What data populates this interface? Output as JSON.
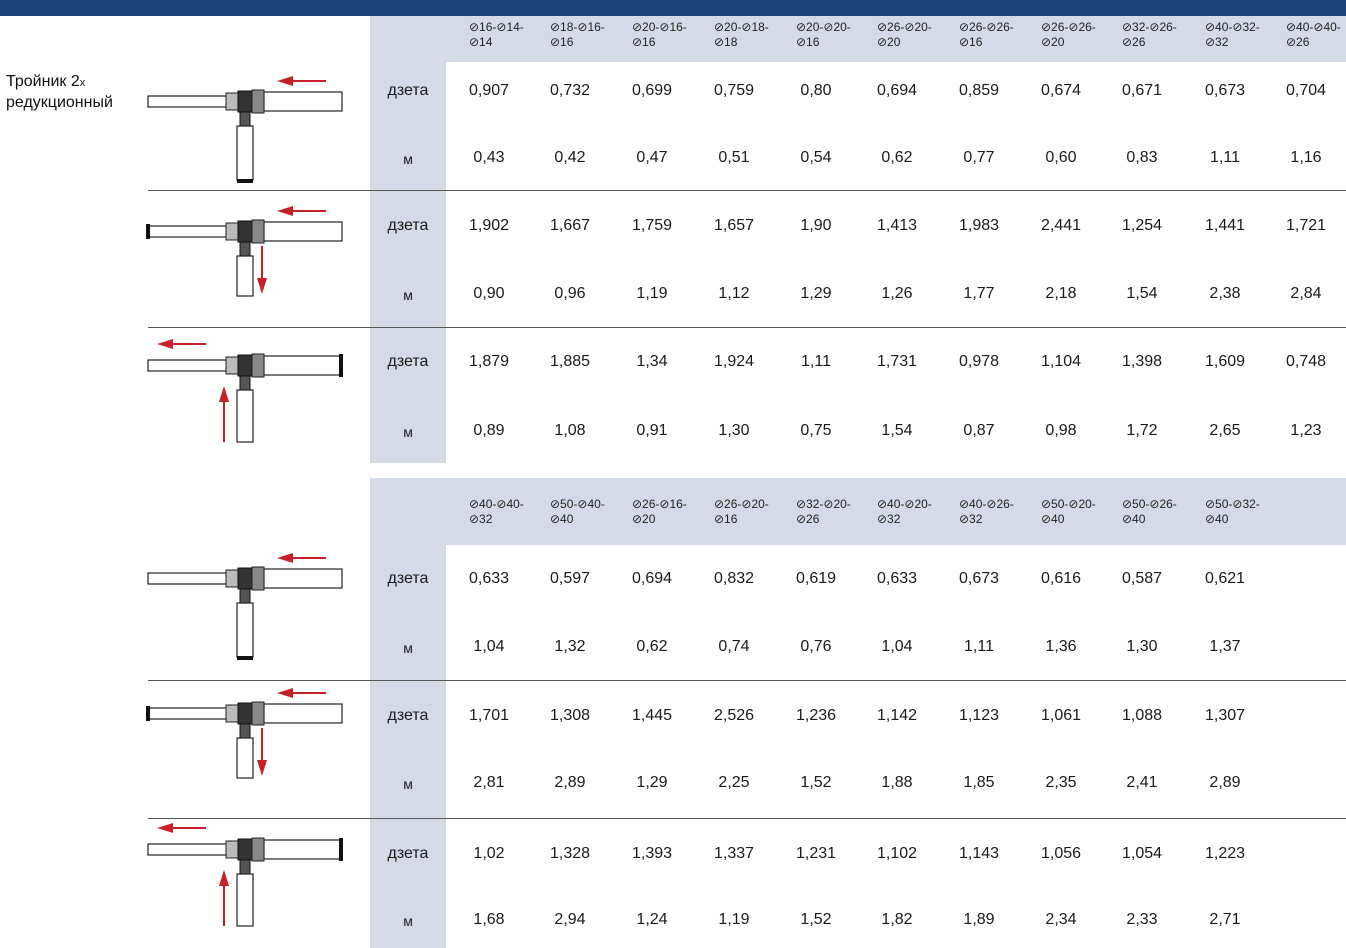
{
  "title": {
    "main": "Тройник 2",
    "suffix": "x",
    "line2": "редукционный"
  },
  "labels": {
    "zeta": "дзета",
    "m": "м"
  },
  "colors": {
    "header_bar": "#1c4378",
    "band": "#d5dae8",
    "arrow": "#c8202a"
  },
  "diagram_icons": [
    "tee-straight-flow-icon",
    "tee-split-flow-icon",
    "tee-merge-flow-icon"
  ],
  "table1": {
    "headers": [
      "⊘16-⊘14-\n⊘14",
      "⊘18-⊘16-\n⊘16",
      "⊘20-⊘16-\n⊘16",
      "⊘20-⊘18-\n⊘18",
      "⊘20-⊘20-\n⊘16",
      "⊘26-⊘20-\n⊘20",
      "⊘26-⊘26-\n⊘16",
      "⊘26-⊘26-\n⊘20",
      "⊘32-⊘26-\n⊘26",
      "⊘40-⊘32-\n⊘32",
      "⊘40-⊘40-\n⊘26"
    ],
    "rows": [
      {
        "zeta": [
          "0,907",
          "0,732",
          "0,699",
          "0,759",
          "0,80",
          "0,694",
          "0,859",
          "0,674",
          "0,671",
          "0,673",
          "0,704"
        ],
        "m": [
          "0,43",
          "0,42",
          "0,47",
          "0,51",
          "0,54",
          "0,62",
          "0,77",
          "0,60",
          "0,83",
          "1,11",
          "1,16"
        ]
      },
      {
        "zeta": [
          "1,902",
          "1,667",
          "1,759",
          "1,657",
          "1,90",
          "1,413",
          "1,983",
          "2,441",
          "1,254",
          "1,441",
          "1,721"
        ],
        "m": [
          "0,90",
          "0,96",
          "1,19",
          "1,12",
          "1,29",
          "1,26",
          "1,77",
          "2,18",
          "1,54",
          "2,38",
          "2,84"
        ]
      },
      {
        "zeta": [
          "1,879",
          "1,885",
          "1,34",
          "1,924",
          "1,11",
          "1,731",
          "0,978",
          "1,104",
          "1,398",
          "1,609",
          "0,748"
        ],
        "m": [
          "0,89",
          "1,08",
          "0,91",
          "1,30",
          "0,75",
          "1,54",
          "0,87",
          "0,98",
          "1,72",
          "2,65",
          "1,23"
        ]
      }
    ]
  },
  "table2": {
    "headers": [
      "⊘40-⊘40-\n⊘32",
      "⊘50-⊘40-\n⊘40",
      "⊘26-⊘16-\n⊘20",
      "⊘26-⊘20-\n⊘16",
      "⊘32-⊘20-\n⊘26",
      "⊘40-⊘20-\n⊘32",
      "⊘40-⊘26-\n⊘32",
      "⊘50-⊘20-\n⊘40",
      "⊘50-⊘26-\n⊘40",
      "⊘50-⊘32-\n⊘40"
    ],
    "rows": [
      {
        "zeta": [
          "0,633",
          "0,597",
          "0,694",
          "0,832",
          "0,619",
          "0,633",
          "0,673",
          "0,616",
          "0,587",
          "0,621"
        ],
        "m": [
          "1,04",
          "1,32",
          "0,62",
          "0,74",
          "0,76",
          "1,04",
          "1,11",
          "1,36",
          "1,30",
          "1,37"
        ]
      },
      {
        "zeta": [
          "1,701",
          "1,308",
          "1,445",
          "2,526",
          "1,236",
          "1,142",
          "1,123",
          "1,061",
          "1,088",
          "1,307"
        ],
        "m": [
          "2,81",
          "2,89",
          "1,29",
          "2,25",
          "1,52",
          "1,88",
          "1,85",
          "2,35",
          "2,41",
          "2,89"
        ]
      },
      {
        "zeta": [
          "1,02",
          "1,328",
          "1,393",
          "1,337",
          "1,231",
          "1,102",
          "1,143",
          "1,056",
          "1,054",
          "1,223"
        ],
        "m": [
          "1,68",
          "2,94",
          "1,24",
          "1,19",
          "1,52",
          "1,82",
          "1,89",
          "2,34",
          "2,33",
          "2,71"
        ]
      }
    ]
  }
}
